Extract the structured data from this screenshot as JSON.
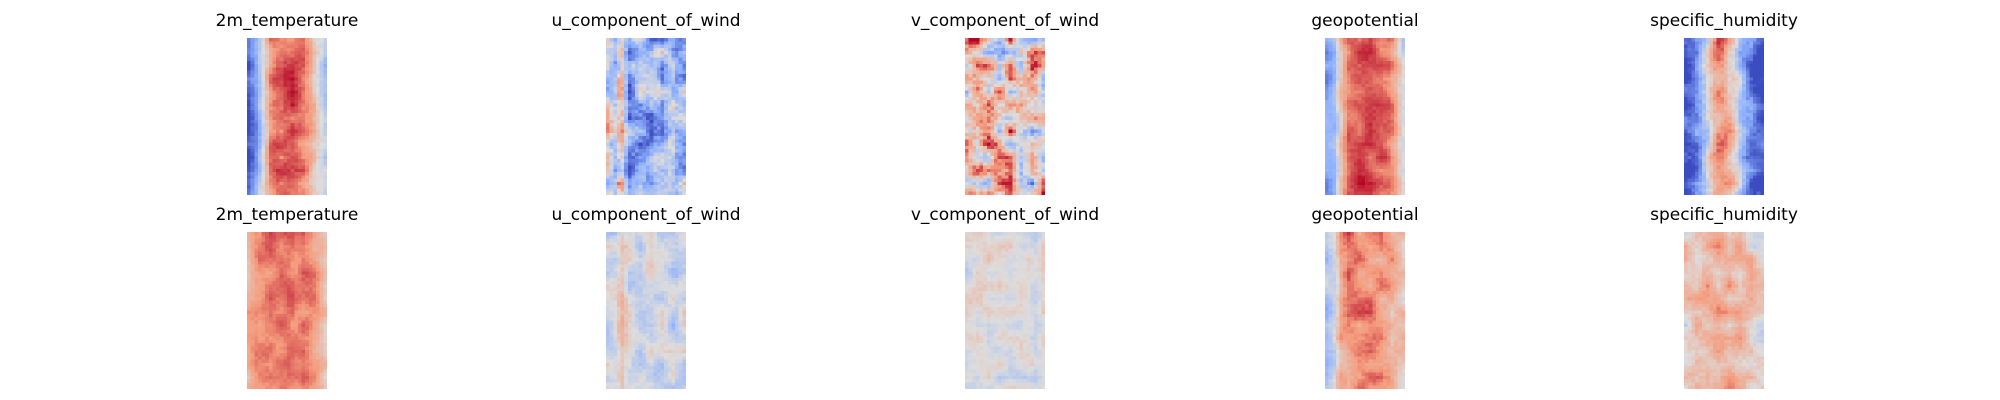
{
  "figure": {
    "rows": 2,
    "cols": 5
  },
  "chart_data": [
    {
      "type": "heatmap",
      "title": "2m_temperature",
      "colormap": "coolwarm",
      "row": 0,
      "col": 0,
      "grid": false,
      "profile": [
        -0.95,
        -0.6,
        -0.1,
        0.45,
        0.7,
        0.75,
        0.72,
        0.65,
        0.55,
        0.35,
        0.05,
        -0.25
      ],
      "variation": 0.25,
      "seed": 11
    },
    {
      "type": "heatmap",
      "title": "u_component_of_wind",
      "colormap": "coolwarm",
      "row": 0,
      "col": 1,
      "grid": false,
      "profile": [
        -0.1,
        -0.4,
        0.3,
        -0.55,
        -0.35,
        -0.3,
        -0.45,
        -0.2,
        -0.35,
        -0.15,
        -0.4,
        -0.3
      ],
      "variation": 0.6,
      "seed": 23
    },
    {
      "type": "heatmap",
      "title": "v_component_of_wind",
      "colormap": "coolwarm",
      "row": 0,
      "col": 2,
      "grid": false,
      "profile": [
        0.1,
        0.2,
        0.25,
        0.15,
        0.3,
        0.2,
        0.25,
        0.15,
        0.2,
        0.1,
        0.15,
        0.05
      ],
      "variation": 0.8,
      "seed": 37
    },
    {
      "type": "heatmap",
      "title": "geopotential",
      "colormap": "coolwarm",
      "row": 0,
      "col": 3,
      "grid": false,
      "profile": [
        -0.6,
        -0.45,
        0.2,
        0.65,
        0.75,
        0.8,
        0.78,
        0.72,
        0.7,
        0.6,
        0.35,
        -0.1
      ],
      "variation": 0.2,
      "seed": 41
    },
    {
      "type": "heatmap",
      "title": "specific_humidity",
      "colormap": "coolwarm",
      "row": 0,
      "col": 4,
      "grid": false,
      "profile": [
        -0.95,
        -0.85,
        -0.6,
        -0.2,
        0.35,
        0.6,
        0.5,
        0.2,
        -0.3,
        -0.65,
        -0.85,
        -0.95
      ],
      "variation": 0.35,
      "seed": 53
    },
    {
      "type": "heatmap",
      "title": "2m_temperature",
      "colormap": "coolwarm",
      "row": 1,
      "col": 0,
      "grid": false,
      "profile": [
        0.35,
        0.55,
        0.6,
        0.62,
        0.6,
        0.62,
        0.65,
        0.55,
        0.6,
        0.55,
        0.45,
        0.25
      ],
      "variation": 0.18,
      "seed": 61
    },
    {
      "type": "heatmap",
      "title": "u_component_of_wind",
      "colormap": "coolwarm",
      "row": 1,
      "col": 1,
      "grid": false,
      "profile": [
        -0.15,
        -0.1,
        0.2,
        -0.1,
        -0.15,
        -0.1,
        -0.05,
        -0.15,
        -0.1,
        -0.15,
        -0.2,
        -0.1
      ],
      "variation": 0.3,
      "seed": 73
    },
    {
      "type": "heatmap",
      "title": "v_component_of_wind",
      "colormap": "coolwarm",
      "row": 1,
      "col": 2,
      "grid": false,
      "profile": [
        -0.05,
        0.0,
        0.05,
        0.0,
        -0.05,
        0.0,
        0.05,
        0.0,
        -0.05,
        0.0,
        -0.1,
        0.1
      ],
      "variation": 0.22,
      "seed": 89
    },
    {
      "type": "heatmap",
      "title": "geopotential",
      "colormap": "coolwarm",
      "row": 1,
      "col": 3,
      "grid": false,
      "profile": [
        -0.3,
        -0.1,
        0.45,
        0.55,
        0.6,
        0.58,
        0.55,
        0.5,
        0.45,
        0.4,
        0.3,
        0.15
      ],
      "variation": 0.25,
      "seed": 97
    },
    {
      "type": "heatmap",
      "title": "specific_humidity",
      "colormap": "coolwarm",
      "row": 1,
      "col": 4,
      "grid": false,
      "profile": [
        0.1,
        0.2,
        0.25,
        0.3,
        0.35,
        0.4,
        0.35,
        0.3,
        0.25,
        0.2,
        0.15,
        0.1
      ],
      "variation": 0.3,
      "seed": 103
    }
  ]
}
